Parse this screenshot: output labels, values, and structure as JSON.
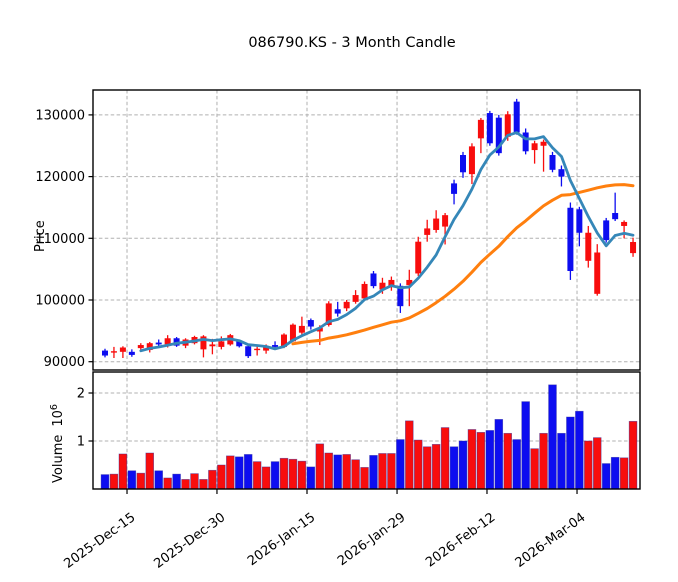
{
  "title": "086790.KS - 3 Month Candle",
  "price_axis": {
    "label": "Price",
    "ticks": [
      90000,
      100000,
      110000,
      120000,
      130000
    ]
  },
  "volume_axis": {
    "label": "Volume",
    "unit_base": "10",
    "unit_exp": "6",
    "ticks": [
      1,
      2
    ]
  },
  "colors": {
    "up": "#f80d0d",
    "down": "#0d0df0",
    "ma_fast": "#3587b8",
    "ma_slow": "#ff7f0e",
    "grid": "#b0b0b0",
    "spine": "#000000",
    "background": "#ffffff",
    "volume_bar_edge": "#27279d"
  },
  "chart_data": {
    "type": "candlestick+volume",
    "title": "086790.KS - 3 Month Candle",
    "ylabel_price": "Price",
    "ylabel_volume": "Volume 10^6",
    "price_ylim": [
      88600,
      134200
    ],
    "volume_ylim": [
      0,
      2.44
    ],
    "grid": true,
    "x_tick_labels": [
      "2025-Dec-15",
      "2025-Dec-30",
      "2026-Jan-15",
      "2026-Jan-29",
      "2026-Feb-12",
      "2026-Mar-04"
    ],
    "x_tick_index_positions": [
      2.46,
      12.51,
      22.57,
      32.63,
      42.68,
      52.74
    ],
    "ma_fast_period": 5,
    "ma_slow_period": 22,
    "candle_columns": [
      "open",
      "high",
      "low",
      "close",
      "volume_millions"
    ],
    "candles": [
      [
        91800,
        92100,
        90700,
        91000,
        0.3
      ],
      [
        91500,
        92400,
        90600,
        91700,
        0.31
      ],
      [
        91600,
        92500,
        90600,
        92300,
        0.73
      ],
      [
        91600,
        92000,
        90800,
        91100,
        0.38
      ],
      [
        92200,
        93000,
        91700,
        92700,
        0.33
      ],
      [
        91900,
        93200,
        91500,
        93000,
        0.75
      ],
      [
        93100,
        93600,
        92500,
        92800,
        0.38
      ],
      [
        92800,
        94300,
        92300,
        93800,
        0.23
      ],
      [
        93800,
        94000,
        92400,
        92600,
        0.31
      ],
      [
        92600,
        93800,
        92200,
        93600,
        0.2
      ],
      [
        93000,
        94200,
        92800,
        94000,
        0.32
      ],
      [
        92000,
        94300,
        90700,
        94100,
        0.2
      ],
      [
        92500,
        93700,
        91200,
        92800,
        0.39
      ],
      [
        92400,
        94100,
        92000,
        93300,
        0.5
      ],
      [
        92800,
        94500,
        92600,
        94300,
        0.69
      ],
      [
        93400,
        93600,
        92300,
        92500,
        0.67
      ],
      [
        92500,
        92700,
        90600,
        90900,
        0.72
      ],
      [
        91900,
        92600,
        91000,
        92100,
        0.57
      ],
      [
        91800,
        92800,
        91300,
        92500,
        0.46
      ],
      [
        92700,
        93300,
        92000,
        92400,
        0.57
      ],
      [
        92400,
        94600,
        92200,
        94400,
        0.64
      ],
      [
        93300,
        96200,
        93200,
        96000,
        0.62
      ],
      [
        94700,
        97300,
        94300,
        95800,
        0.58
      ],
      [
        96750,
        97000,
        95200,
        95700,
        0.46
      ],
      [
        94900,
        95900,
        92700,
        95500,
        0.94
      ],
      [
        95950,
        99800,
        95700,
        99450,
        0.75
      ],
      [
        98500,
        99700,
        97300,
        97800,
        0.71
      ],
      [
        98650,
        100000,
        98200,
        99700,
        0.72
      ],
      [
        99700,
        101600,
        99400,
        100800,
        0.61
      ],
      [
        100250,
        103000,
        99900,
        102600,
        0.45
      ],
      [
        104300,
        104700,
        101900,
        102250,
        0.7
      ],
      [
        101700,
        103600,
        101000,
        102800,
        0.74
      ],
      [
        102150,
        103800,
        101500,
        103250,
        0.74
      ],
      [
        102300,
        102700,
        97900,
        99000,
        1.03
      ],
      [
        102400,
        104900,
        99000,
        103250,
        1.42
      ],
      [
        104300,
        110250,
        103900,
        109450,
        1.02
      ],
      [
        110550,
        113000,
        109450,
        111600,
        0.88
      ],
      [
        111350,
        114550,
        110900,
        113200,
        0.93
      ],
      [
        111900,
        114100,
        109000,
        113750,
        1.28
      ],
      [
        118900,
        119500,
        115500,
        117200,
        0.88
      ],
      [
        123500,
        124000,
        119800,
        120700,
        1.0
      ],
      [
        120400,
        125400,
        118800,
        124900,
        1.24
      ],
      [
        126200,
        129500,
        123800,
        129200,
        1.18
      ],
      [
        130300,
        130650,
        125000,
        125400,
        1.22
      ],
      [
        129550,
        130000,
        123400,
        123800,
        1.45
      ],
      [
        126450,
        130600,
        125800,
        130100,
        1.16
      ],
      [
        132150,
        132600,
        126800,
        127150,
        1.03
      ],
      [
        127150,
        127800,
        123600,
        124100,
        1.82
      ],
      [
        124300,
        125800,
        122100,
        125400,
        0.84
      ],
      [
        125000,
        126000,
        120800,
        125650,
        1.16
      ],
      [
        123500,
        124000,
        120700,
        121100,
        2.17
      ],
      [
        121200,
        121800,
        118400,
        120000,
        1.16
      ],
      [
        114950,
        115800,
        103250,
        104700,
        1.5
      ],
      [
        114700,
        115100,
        108700,
        110900,
        1.62
      ],
      [
        106350,
        112000,
        105250,
        110900,
        1.0
      ],
      [
        101000,
        109050,
        100700,
        107700,
        1.07
      ],
      [
        112900,
        113300,
        109300,
        109700,
        0.53
      ],
      [
        114100,
        117400,
        112800,
        113100,
        0.66
      ],
      [
        112000,
        112900,
        110000,
        112650,
        0.65
      ],
      [
        107600,
        110100,
        107000,
        109400,
        1.41
      ]
    ]
  }
}
